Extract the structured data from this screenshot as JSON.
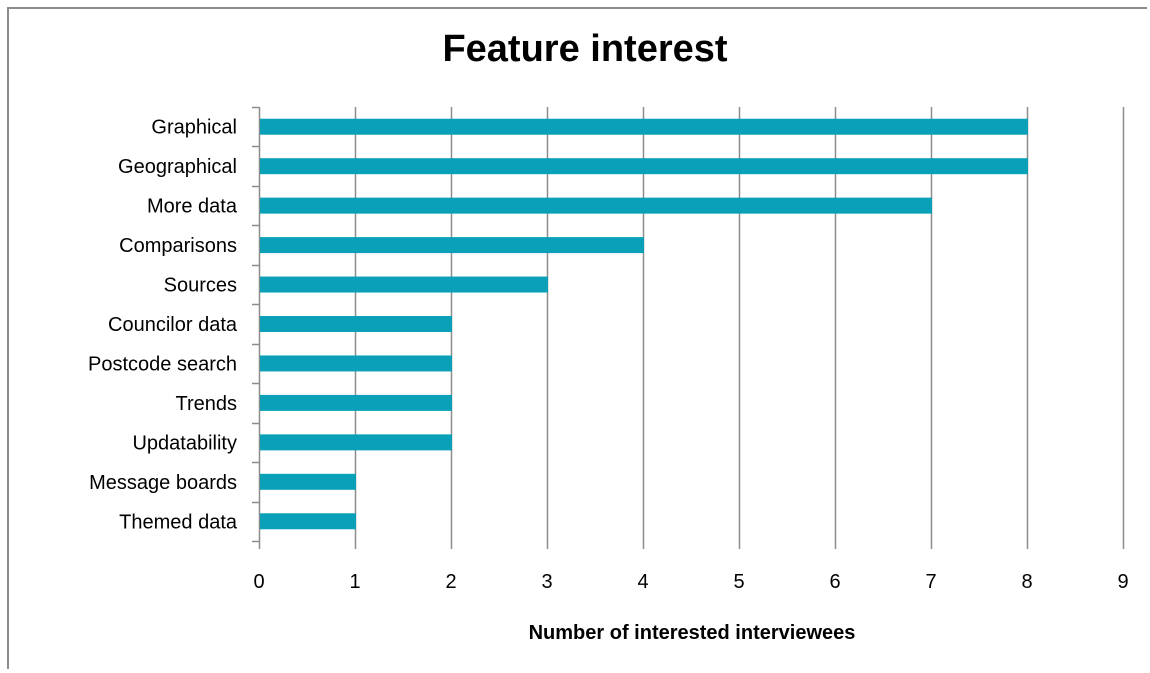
{
  "chart_data": {
    "type": "bar",
    "orientation": "horizontal",
    "title": "Feature interest",
    "xlabel": "Number of interested interviewees",
    "ylabel": "",
    "categories": [
      "Graphical",
      "Geographical",
      "More data",
      "Comparisons",
      "Sources",
      "Councilor data",
      "Postcode search",
      "Trends",
      "Updatability",
      "Message boards",
      "Themed data"
    ],
    "values": [
      8,
      8,
      7,
      4,
      3,
      2,
      2,
      2,
      2,
      1,
      1
    ],
    "xlim": [
      0,
      9
    ],
    "xticks": [
      "0",
      "1",
      "2",
      "3",
      "4",
      "5",
      "6",
      "7",
      "8",
      "9"
    ],
    "grid": "vertical",
    "legend": "none",
    "bar_color": "#0aa1b8",
    "grid_color": "#8c8c8c"
  }
}
